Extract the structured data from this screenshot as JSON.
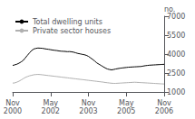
{
  "chart_data": {
    "type": "line",
    "ylabel": "no.",
    "categories": [
      "Nov\n2000",
      null,
      null,
      null,
      null,
      null,
      null,
      null,
      null,
      null,
      null,
      null,
      null,
      null,
      null,
      null,
      null,
      null,
      "May\n2002",
      null,
      null,
      null,
      null,
      null,
      null,
      null,
      null,
      null,
      null,
      null,
      null,
      null,
      null,
      null,
      null,
      null,
      "Nov\n2003",
      null,
      null,
      null,
      null,
      null,
      null,
      null,
      null,
      null,
      null,
      null,
      null,
      null,
      null,
      null,
      null,
      null,
      "May\n2005",
      null,
      null,
      null,
      null,
      null,
      null,
      null,
      null,
      null,
      null,
      null,
      null,
      null,
      null,
      null,
      null,
      null,
      "Nov\n2006"
    ],
    "series": [
      {
        "name": "Total dwelling units",
        "color": "#000000",
        "values": [
          3100,
          3150,
          3200,
          3280,
          3380,
          3500,
          3700,
          3900,
          4100,
          4280,
          4400,
          4450,
          4480,
          4470,
          4460,
          4430,
          4400,
          4380,
          4350,
          4320,
          4300,
          4280,
          4250,
          4230,
          4220,
          4210,
          4190,
          4200,
          4180,
          4150,
          4100,
          4050,
          4020,
          3980,
          3950,
          3900,
          3820,
          3700,
          3580,
          3450,
          3300,
          3200,
          3100,
          3000,
          2900,
          2820,
          2780,
          2750,
          2780,
          2820,
          2850,
          2880,
          2900,
          2920,
          2940,
          2960,
          2970,
          2980,
          2990,
          3000,
          3010,
          3020,
          3050,
          3080,
          3100,
          3120,
          3130,
          3140,
          3150,
          3160,
          3170,
          3180,
          3190
        ]
      },
      {
        "name": "Private sector houses",
        "color": "#b0b0b0",
        "values": [
          1700,
          1720,
          1780,
          1850,
          1950,
          2050,
          2150,
          2220,
          2280,
          2320,
          2360,
          2380,
          2390,
          2380,
          2360,
          2340,
          2320,
          2300,
          2280,
          2260,
          2240,
          2220,
          2200,
          2180,
          2160,
          2140,
          2120,
          2100,
          2080,
          2060,
          2040,
          2020,
          2000,
          1980,
          1960,
          1940,
          1920,
          1900,
          1880,
          1860,
          1840,
          1820,
          1800,
          1780,
          1750,
          1730,
          1710,
          1690,
          1680,
          1680,
          1690,
          1700,
          1710,
          1720,
          1730,
          1740,
          1750,
          1760,
          1770,
          1760,
          1750,
          1740,
          1730,
          1720,
          1710,
          1700,
          1690,
          1680,
          1670,
          1660,
          1650,
          1640,
          1630
        ]
      }
    ],
    "ylim": [
      1000,
      7000
    ],
    "yticks": [
      1000,
      2500,
      4000,
      5500,
      7000
    ],
    "grid": false,
    "legend": "upper left"
  }
}
